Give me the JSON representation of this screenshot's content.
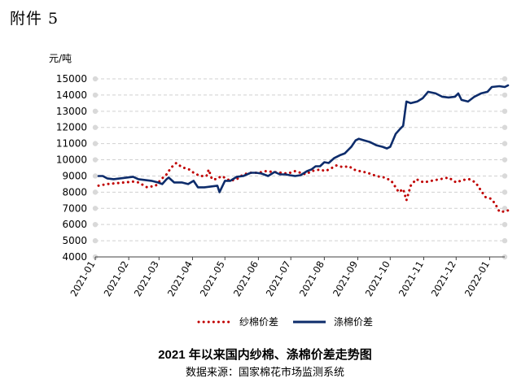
{
  "document": {
    "label": "附件 5"
  },
  "chart_data": {
    "type": "line",
    "title": "2021 年以来国内纱棉、涤棉价差走势图",
    "source": "数据来源：国家棉花市场监测系统",
    "ylabel": "元/吨",
    "xlabel": "",
    "ylim": [
      4000,
      15000
    ],
    "yticks": [
      4000,
      5000,
      6000,
      7000,
      8000,
      9000,
      10000,
      11000,
      12000,
      13000,
      14000,
      15000
    ],
    "xticks": [
      "2021-01",
      "2021-02",
      "2021-03",
      "2021-04",
      "2021-05",
      "2021-06",
      "2021-07",
      "2021-08",
      "2021-09",
      "2021-10",
      "2021-11",
      "2021-12",
      "2022-01"
    ],
    "x_range": [
      "2021-01-01",
      "2022-01-15"
    ],
    "grid": true,
    "legend_position": "bottom",
    "series": [
      {
        "name": "纱棉价差",
        "color": "#c00000",
        "style": "dotted",
        "points": [
          [
            "2021-01-04",
            8400
          ],
          [
            "2021-01-12",
            8500
          ],
          [
            "2021-01-20",
            8550
          ],
          [
            "2021-01-28",
            8600
          ],
          [
            "2021-02-05",
            8650
          ],
          [
            "2021-02-10",
            8600
          ],
          [
            "2021-02-18",
            8300
          ],
          [
            "2021-02-22",
            8350
          ],
          [
            "2021-02-26",
            8400
          ],
          [
            "2021-03-03",
            8800
          ],
          [
            "2021-03-08",
            9100
          ],
          [
            "2021-03-12",
            9500
          ],
          [
            "2021-03-17",
            9800
          ],
          [
            "2021-03-22",
            9550
          ],
          [
            "2021-03-29",
            9400
          ],
          [
            "2021-04-02",
            9200
          ],
          [
            "2021-04-08",
            9000
          ],
          [
            "2021-04-14",
            9000
          ],
          [
            "2021-04-16",
            9400
          ],
          [
            "2021-04-19",
            8800
          ],
          [
            "2021-04-23",
            8800
          ],
          [
            "2021-04-28",
            9000
          ],
          [
            "2021-05-06",
            8700
          ],
          [
            "2021-05-12",
            8800
          ],
          [
            "2021-05-18",
            9100
          ],
          [
            "2021-05-25",
            9200
          ],
          [
            "2021-06-01",
            9200
          ],
          [
            "2021-06-08",
            9300
          ],
          [
            "2021-06-15",
            9250
          ],
          [
            "2021-06-22",
            9200
          ],
          [
            "2021-06-28",
            9150
          ],
          [
            "2021-07-05",
            9300
          ],
          [
            "2021-07-10",
            9200
          ],
          [
            "2021-07-15",
            9100
          ],
          [
            "2021-07-20",
            9300
          ],
          [
            "2021-07-28",
            9400
          ],
          [
            "2021-08-02",
            9300
          ],
          [
            "2021-08-08",
            9500
          ],
          [
            "2021-08-12",
            9650
          ],
          [
            "2021-08-18",
            9550
          ],
          [
            "2021-08-24",
            9600
          ],
          [
            "2021-08-28",
            9400
          ],
          [
            "2021-09-03",
            9300
          ],
          [
            "2021-09-10",
            9200
          ],
          [
            "2021-09-18",
            9000
          ],
          [
            "2021-09-26",
            8900
          ],
          [
            "2021-10-02",
            8700
          ],
          [
            "2021-10-06",
            8300
          ],
          [
            "2021-10-09",
            8000
          ],
          [
            "2021-10-13",
            8200
          ],
          [
            "2021-10-16",
            7500
          ],
          [
            "2021-10-20",
            8400
          ],
          [
            "2021-10-25",
            8800
          ],
          [
            "2021-11-01",
            8600
          ],
          [
            "2021-11-08",
            8700
          ],
          [
            "2021-11-16",
            8800
          ],
          [
            "2021-11-24",
            8900
          ],
          [
            "2021-12-01",
            8600
          ],
          [
            "2021-12-07",
            8750
          ],
          [
            "2021-12-13",
            8800
          ],
          [
            "2021-12-19",
            8600
          ],
          [
            "2021-12-24",
            8100
          ],
          [
            "2021-12-28",
            7700
          ],
          [
            "2022-01-02",
            7600
          ],
          [
            "2022-01-06",
            7300
          ],
          [
            "2022-01-10",
            6800
          ],
          [
            "2022-01-15",
            6800
          ],
          [
            "2022-01-19",
            6900
          ]
        ]
      },
      {
        "name": "涤棉价差",
        "color": "#0d2c6b",
        "style": "solid",
        "points": [
          [
            "2021-01-04",
            9000
          ],
          [
            "2021-01-08",
            9000
          ],
          [
            "2021-01-12",
            8850
          ],
          [
            "2021-01-18",
            8800
          ],
          [
            "2021-01-24",
            8850
          ],
          [
            "2021-01-30",
            8900
          ],
          [
            "2021-02-05",
            8950
          ],
          [
            "2021-02-10",
            8800
          ],
          [
            "2021-02-16",
            8750
          ],
          [
            "2021-02-22",
            8700
          ],
          [
            "2021-02-28",
            8600
          ],
          [
            "2021-03-04",
            8500
          ],
          [
            "2021-03-08",
            8800
          ],
          [
            "2021-03-10",
            8900
          ],
          [
            "2021-03-15",
            8600
          ],
          [
            "2021-03-22",
            8600
          ],
          [
            "2021-03-28",
            8500
          ],
          [
            "2021-04-02",
            8700
          ],
          [
            "2021-04-06",
            8300
          ],
          [
            "2021-04-12",
            8300
          ],
          [
            "2021-04-18",
            8350
          ],
          [
            "2021-04-24",
            8400
          ],
          [
            "2021-04-26",
            8000
          ],
          [
            "2021-05-01",
            8700
          ],
          [
            "2021-05-06",
            8700
          ],
          [
            "2021-05-12",
            8950
          ],
          [
            "2021-05-18",
            9000
          ],
          [
            "2021-05-25",
            9200
          ],
          [
            "2021-05-30",
            9200
          ],
          [
            "2021-06-04",
            9150
          ],
          [
            "2021-06-10",
            9000
          ],
          [
            "2021-06-16",
            9250
          ],
          [
            "2021-06-21",
            9100
          ],
          [
            "2021-06-26",
            9100
          ],
          [
            "2021-06-30",
            9050
          ],
          [
            "2021-07-05",
            9000
          ],
          [
            "2021-07-10",
            9050
          ],
          [
            "2021-07-16",
            9300
          ],
          [
            "2021-07-20",
            9400
          ],
          [
            "2021-07-24",
            9600
          ],
          [
            "2021-07-28",
            9600
          ],
          [
            "2021-08-01",
            9850
          ],
          [
            "2021-08-05",
            9800
          ],
          [
            "2021-08-10",
            10100
          ],
          [
            "2021-08-13",
            10200
          ],
          [
            "2021-08-16",
            10300
          ],
          [
            "2021-08-20",
            10400
          ],
          [
            "2021-08-26",
            10800
          ],
          [
            "2021-08-30",
            11200
          ],
          [
            "2021-09-02",
            11300
          ],
          [
            "2021-09-07",
            11200
          ],
          [
            "2021-09-12",
            11100
          ],
          [
            "2021-09-18",
            10900
          ],
          [
            "2021-09-24",
            10800
          ],
          [
            "2021-09-28",
            10700
          ],
          [
            "2021-10-01",
            10800
          ],
          [
            "2021-10-06",
            11600
          ],
          [
            "2021-10-10",
            11900
          ],
          [
            "2021-10-13",
            12100
          ],
          [
            "2021-10-16",
            13600
          ],
          [
            "2021-10-20",
            13500
          ],
          [
            "2021-10-26",
            13600
          ],
          [
            "2021-10-31",
            13800
          ],
          [
            "2021-11-05",
            14200
          ],
          [
            "2021-11-12",
            14100
          ],
          [
            "2021-11-18",
            13900
          ],
          [
            "2021-11-24",
            13850
          ],
          [
            "2021-11-30",
            13900
          ],
          [
            "2021-12-03",
            14100
          ],
          [
            "2021-12-06",
            13700
          ],
          [
            "2021-12-12",
            13600
          ],
          [
            "2021-12-18",
            13900
          ],
          [
            "2021-12-24",
            14100
          ],
          [
            "2021-12-30",
            14200
          ],
          [
            "2022-01-03",
            14500
          ],
          [
            "2022-01-10",
            14550
          ],
          [
            "2022-01-15",
            14500
          ],
          [
            "2022-01-18",
            14600
          ]
        ]
      }
    ]
  }
}
